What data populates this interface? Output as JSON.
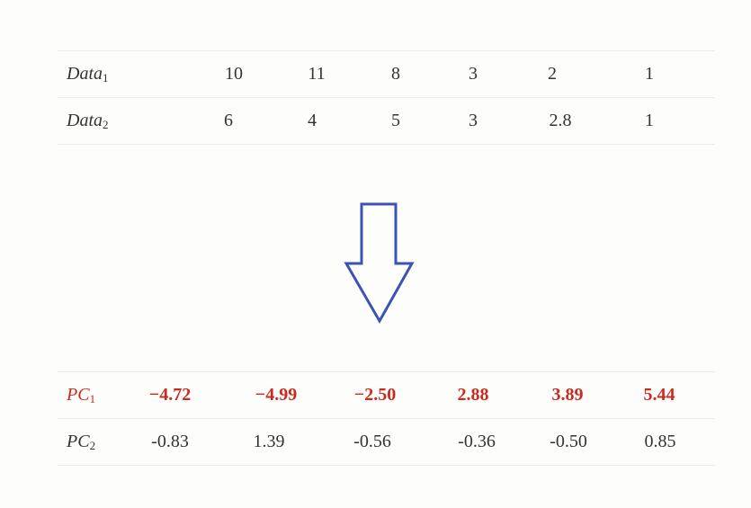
{
  "top_table": {
    "rows": [
      {
        "label_base": "Data",
        "label_sub": "1",
        "values": [
          "10",
          "11",
          "8",
          "3",
          "2",
          "1"
        ]
      },
      {
        "label_base": "Data",
        "label_sub": "2",
        "values": [
          "6",
          "4",
          "5",
          "3",
          "2.8",
          "1"
        ]
      }
    ]
  },
  "arrow": {
    "icon": "down-arrow-icon",
    "color": "#3a53b5"
  },
  "bottom_table": {
    "highlight_color": "#cc2a1f",
    "rows": [
      {
        "label_base": "PC",
        "label_sub": "1",
        "values": [
          "−4.72",
          "−4.99",
          "−2.50",
          "2.88",
          "3.89",
          "5.44"
        ]
      },
      {
        "label_base": "PC",
        "label_sub": "2",
        "values": [
          "-0.83",
          "1.39",
          "-0.56",
          "-0.36",
          "-0.50",
          "0.85"
        ]
      }
    ]
  }
}
